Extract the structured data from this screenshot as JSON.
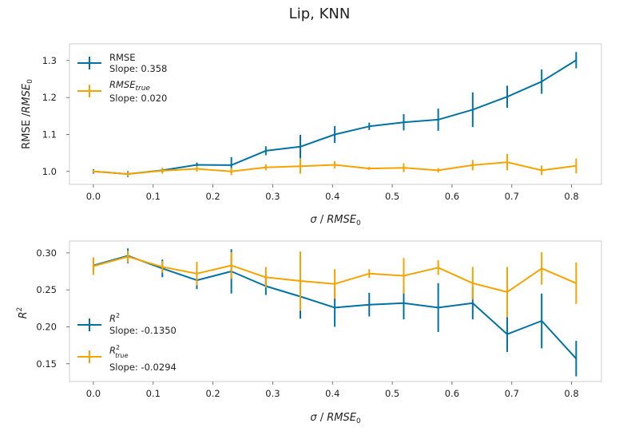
{
  "figure": {
    "title": "Lip, KNN"
  },
  "colors": {
    "rmse": "#0072a3",
    "true": "#f5a300",
    "axes": "#cccccc"
  },
  "chart_data": [
    {
      "type": "line",
      "id": "rmse",
      "title": "",
      "xlabel": "σ / RMSE_0",
      "ylabel": "RMSE /RMSE_0",
      "xlim": [
        -0.04,
        0.85
      ],
      "ylim": [
        0.965,
        1.345
      ],
      "xticks": [
        0.0,
        0.1,
        0.2,
        0.3,
        0.4,
        0.5,
        0.6,
        0.7,
        0.8
      ],
      "xtick_labels": [
        "0.0",
        "0.1",
        "0.2",
        "0.3",
        "0.4",
        "0.5",
        "0.6",
        "0.7",
        "0.8"
      ],
      "yticks": [
        1.0,
        1.1,
        1.2,
        1.3
      ],
      "ytick_labels": [
        "1.0",
        "1.1",
        "1.2",
        "1.3"
      ],
      "grid": false,
      "legend_position": "upper-left",
      "x": [
        0.0,
        0.0577,
        0.1154,
        0.1731,
        0.2308,
        0.2885,
        0.3462,
        0.4038,
        0.4615,
        0.5192,
        0.5769,
        0.6346,
        0.6923,
        0.75,
        0.8077
      ],
      "series": [
        {
          "name": "RMSE",
          "legend_line1": "RMSE",
          "legend_line2": "Slope: 0.358",
          "color": "#0072a3",
          "values": [
            1.0,
            0.993,
            1.003,
            1.018,
            1.017,
            1.056,
            1.067,
            1.1,
            1.122,
            1.133,
            1.14,
            1.167,
            1.202,
            1.243,
            1.301
          ],
          "errors": [
            0.006,
            0.008,
            0.006,
            0.006,
            0.022,
            0.012,
            0.032,
            0.023,
            0.01,
            0.022,
            0.03,
            0.047,
            0.03,
            0.033,
            0.022
          ]
        },
        {
          "name": "RMSE_true",
          "legend_line1": "RMSE_true",
          "legend_line2": "Slope: 0.020",
          "color": "#f5a300",
          "values": [
            1.0,
            0.993,
            1.002,
            1.007,
            1.0,
            1.011,
            1.014,
            1.018,
            1.008,
            1.01,
            1.003,
            1.017,
            1.025,
            1.003,
            1.015
          ],
          "errors": [
            0.004,
            0.006,
            0.008,
            0.008,
            0.01,
            0.008,
            0.02,
            0.01,
            0.004,
            0.012,
            0.006,
            0.014,
            0.022,
            0.013,
            0.02
          ]
        }
      ]
    },
    {
      "type": "line",
      "id": "r2",
      "title": "",
      "xlabel": "σ / RMSE_0",
      "ylabel": "R^2",
      "xlim": [
        -0.04,
        0.85
      ],
      "ylim": [
        0.126,
        0.316
      ],
      "xticks": [
        0.0,
        0.1,
        0.2,
        0.3,
        0.4,
        0.5,
        0.6,
        0.7,
        0.8
      ],
      "xtick_labels": [
        "0.0",
        "0.1",
        "0.2",
        "0.3",
        "0.4",
        "0.5",
        "0.6",
        "0.7",
        "0.8"
      ],
      "yticks": [
        0.15,
        0.2,
        0.25,
        0.3
      ],
      "ytick_labels": [
        "0.15",
        "0.20",
        "0.25",
        "0.30"
      ],
      "grid": false,
      "legend_position": "lower-left",
      "x": [
        0.0,
        0.0577,
        0.1154,
        0.1731,
        0.2308,
        0.2885,
        0.3462,
        0.4038,
        0.4615,
        0.5192,
        0.5769,
        0.6346,
        0.6923,
        0.75,
        0.8077
      ],
      "series": [
        {
          "name": "R^2",
          "legend_line1": "R^2",
          "legend_line2": "Slope: -0.1350",
          "color": "#0072a3",
          "values": [
            0.283,
            0.296,
            0.279,
            0.263,
            0.275,
            0.255,
            0.241,
            0.226,
            0.23,
            0.232,
            0.226,
            0.232,
            0.19,
            0.208,
            0.157
          ],
          "errors": [
            0.008,
            0.01,
            0.012,
            0.012,
            0.03,
            0.012,
            0.03,
            0.026,
            0.016,
            0.022,
            0.033,
            0.022,
            0.024,
            0.037,
            0.024
          ]
        },
        {
          "name": "R^2_true",
          "legend_line1": "R^2_true",
          "legend_line2": "Slope: -0.0294",
          "color": "#f5a300",
          "values": [
            0.282,
            0.295,
            0.281,
            0.272,
            0.283,
            0.267,
            0.262,
            0.258,
            0.272,
            0.269,
            0.28,
            0.259,
            0.247,
            0.279,
            0.259
          ],
          "errors": [
            0.012,
            0.008,
            0.008,
            0.016,
            0.018,
            0.014,
            0.04,
            0.02,
            0.006,
            0.024,
            0.01,
            0.022,
            0.034,
            0.022,
            0.028
          ]
        }
      ]
    }
  ]
}
